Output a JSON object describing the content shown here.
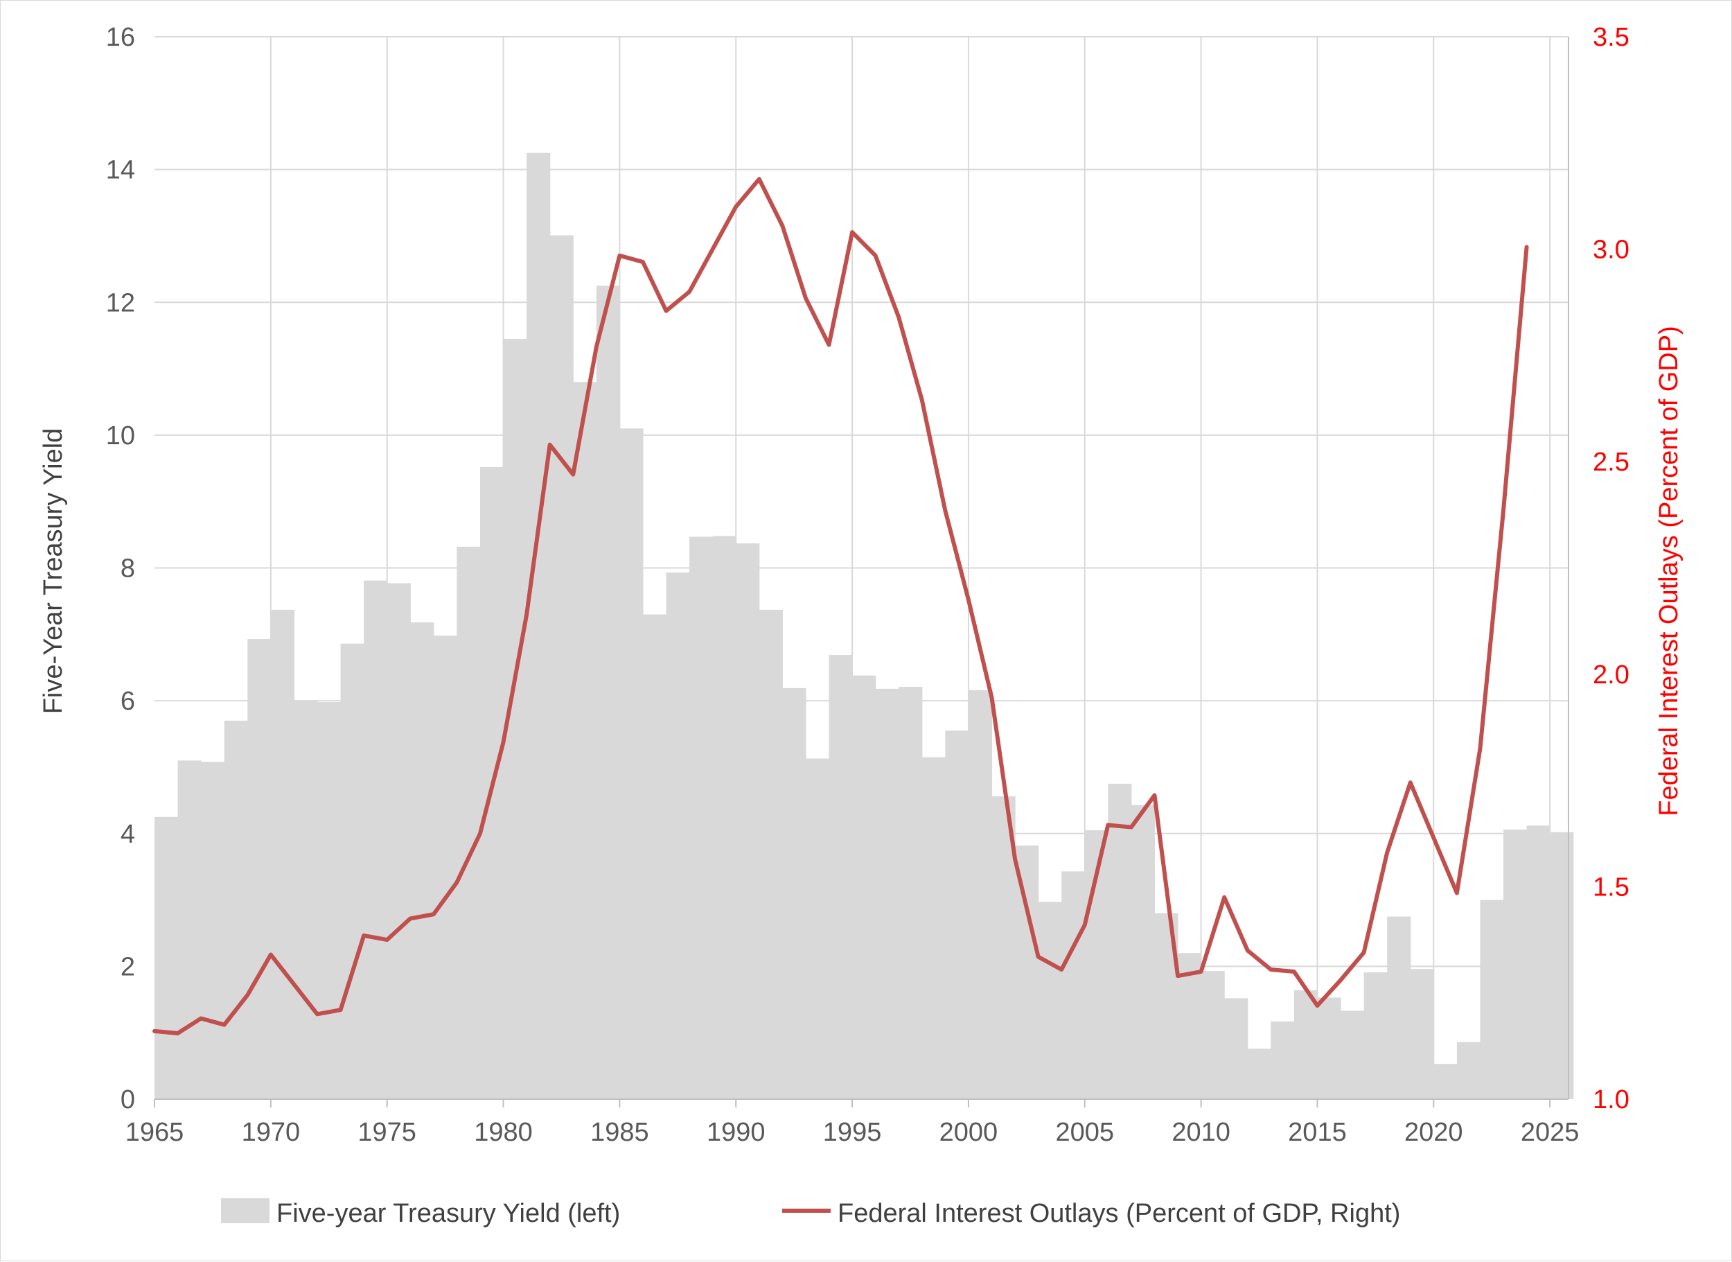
{
  "chart_data": {
    "type": "bar+line",
    "x_label": "",
    "x_ticks": [
      1965,
      1970,
      1975,
      1980,
      1985,
      1990,
      1995,
      2000,
      2005,
      2010,
      2015,
      2020,
      2025
    ],
    "xlim": [
      1965,
      2025.8
    ],
    "y_left": {
      "label": "Five-Year Treasury Yield",
      "lim": [
        0,
        16
      ],
      "ticks": [
        "0",
        "2",
        "4",
        "6",
        "8",
        "10",
        "12",
        "14",
        "16"
      ]
    },
    "y_right": {
      "label": "Federal Interest Outlays (Percent of GDP)",
      "lim": [
        1.0,
        3.5
      ],
      "ticks": [
        "1.0",
        "1.5",
        "2.0",
        "2.5",
        "3.0",
        "3.5"
      ],
      "color": "#ff0000"
    },
    "grid": true,
    "legend_position": "bottom",
    "series": [
      {
        "name": "Five-year Treasury Yield (left)",
        "type": "bar",
        "axis": "left",
        "color": "#d9d9d9",
        "x": [
          1965,
          1966,
          1967,
          1968,
          1969,
          1970,
          1971,
          1972,
          1973,
          1974,
          1975,
          1976,
          1977,
          1978,
          1979,
          1980,
          1981,
          1982,
          1983,
          1984,
          1985,
          1986,
          1987,
          1988,
          1989,
          1990,
          1991,
          1992,
          1993,
          1994,
          1995,
          1996,
          1997,
          1998,
          1999,
          2000,
          2001,
          2002,
          2003,
          2004,
          2005,
          2006,
          2007,
          2008,
          2009,
          2010,
          2011,
          2012,
          2013,
          2014,
          2015,
          2016,
          2017,
          2018,
          2019,
          2020,
          2021,
          2022,
          2023,
          2024,
          2025
        ],
        "values": [
          4.25,
          5.1,
          5.08,
          5.7,
          6.93,
          7.37,
          6.0,
          5.98,
          6.86,
          7.81,
          7.77,
          7.18,
          6.98,
          8.32,
          9.52,
          11.45,
          14.25,
          13.01,
          10.8,
          12.25,
          10.1,
          7.3,
          7.93,
          8.47,
          8.48,
          8.37,
          7.37,
          6.19,
          5.13,
          6.69,
          6.38,
          6.18,
          6.21,
          5.15,
          5.55,
          6.16,
          4.56,
          3.82,
          2.97,
          3.43,
          4.05,
          4.75,
          4.43,
          2.8,
          2.2,
          1.93,
          1.52,
          0.76,
          1.17,
          1.64,
          1.53,
          1.33,
          1.91,
          2.75,
          1.96,
          0.53,
          0.86,
          3.0,
          4.06,
          4.12,
          4.02
        ]
      },
      {
        "name": "Federal Interest Outlays (Percent of GDP, Right)",
        "type": "line",
        "axis": "right",
        "color": "#c0504d",
        "x": [
          1965,
          1966,
          1967,
          1968,
          1969,
          1970,
          1971,
          1972,
          1973,
          1974,
          1975,
          1976,
          1977,
          1978,
          1979,
          1980,
          1981,
          1982,
          1983,
          1984,
          1985,
          1986,
          1987,
          1988,
          1989,
          1990,
          1991,
          1992,
          1993,
          1994,
          1995,
          1996,
          1997,
          1998,
          1999,
          2000,
          2001,
          2002,
          2003,
          2004,
          2005,
          2006,
          2007,
          2008,
          2009,
          2010,
          2011,
          2012,
          2013,
          2014,
          2015,
          2016,
          2017,
          2018,
          2019,
          2020,
          2021,
          2022,
          2023,
          2024
        ],
        "values": [
          1.16,
          1.155,
          1.19,
          1.175,
          1.245,
          1.34,
          1.27,
          1.2,
          1.21,
          1.385,
          1.375,
          1.425,
          1.435,
          1.51,
          1.625,
          1.84,
          2.14,
          2.54,
          2.47,
          2.77,
          2.985,
          2.97,
          2.855,
          2.9,
          3.0,
          3.1,
          3.165,
          3.055,
          2.885,
          2.775,
          3.04,
          2.985,
          2.84,
          2.645,
          2.385,
          2.175,
          1.945,
          1.565,
          1.335,
          1.305,
          1.41,
          1.645,
          1.64,
          1.715,
          1.29,
          1.3,
          1.475,
          1.35,
          1.305,
          1.3,
          1.22,
          1.28,
          1.345,
          1.58,
          1.745,
          1.615,
          1.485,
          1.825,
          2.385,
          3.005
        ]
      }
    ]
  }
}
